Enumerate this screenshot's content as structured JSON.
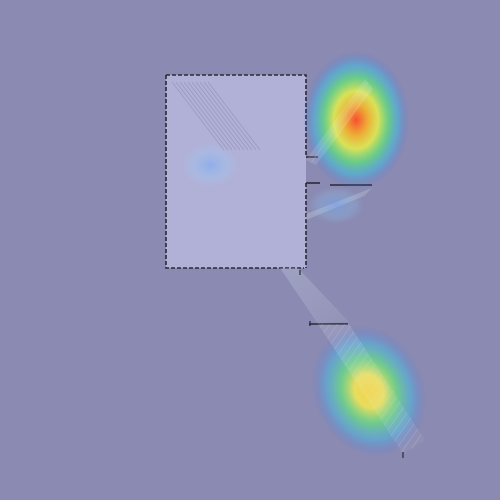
{
  "scene": {
    "background_color": "#8a8ab2",
    "room_fill_color": "#b1b1d8",
    "wall_color": "#2a2a36",
    "beam_color": "#c8c8ef",
    "heatmap_colors": [
      "#2f6bff",
      "#18d6ff",
      "#4dff6a",
      "#f3ff3a",
      "#ffb21f",
      "#ff4a2b"
    ]
  }
}
